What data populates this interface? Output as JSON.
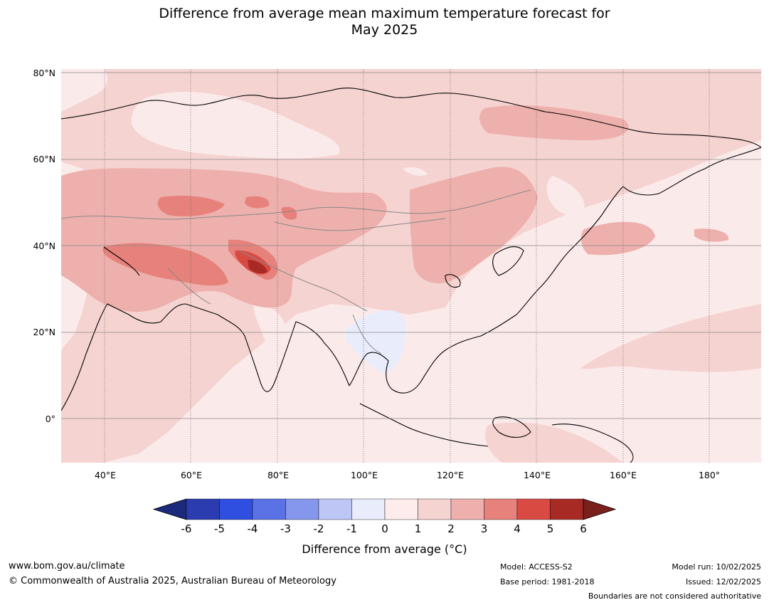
{
  "title": {
    "line1": "Difference from average mean maximum temperature forecast for",
    "line2": "May 2025"
  },
  "map": {
    "lat_labels": [
      "80°N",
      "60°N",
      "40°N",
      "20°N",
      "0°"
    ],
    "lon_labels": [
      "40°E",
      "60°E",
      "80°E",
      "100°E",
      "120°E",
      "140°E",
      "160°E",
      "180°"
    ],
    "lat_range": [
      -10,
      80
    ],
    "lon_range": [
      30,
      192
    ],
    "colors": {
      "anom_0_1": "#fbeaea",
      "anom_1_2": "#f5d3d1",
      "anom_2_3": "#eeb0ac",
      "anom_3_4": "#e7817b",
      "anom_4_5": "#d94a43",
      "anom_5_6": "#a82a24",
      "anom_neg1_0": "#e9ecfb",
      "coastline": "#000000",
      "border": "#888888"
    }
  },
  "colorbar": {
    "ticks": [
      "-6",
      "-5",
      "-4",
      "-3",
      "-2",
      "-1",
      "0",
      "1",
      "2",
      "3",
      "4",
      "5",
      "6"
    ],
    "colors": [
      "#1b2a7a",
      "#2a3cb0",
      "#2e4fe0",
      "#5b72e6",
      "#8597ec",
      "#bec6f5",
      "#e9ecfb",
      "#fdeceb",
      "#f5d3d1",
      "#eeb0ac",
      "#e7817b",
      "#d94a43",
      "#a82a24",
      "#7a1f1b"
    ],
    "label": "Difference from average (°C)"
  },
  "footer": {
    "url": "www.bom.gov.au/climate",
    "copyright": "© Commonwealth of Australia 2025, Australian Bureau of Meteorology",
    "model": "Model: ACCESS-S2",
    "base_period": "Base period: 1981-2018",
    "model_run": "Model run: 10/02/2025",
    "issued": "Issued: 12/02/2025",
    "disclaimer": "Boundaries are not considered authoritative"
  }
}
